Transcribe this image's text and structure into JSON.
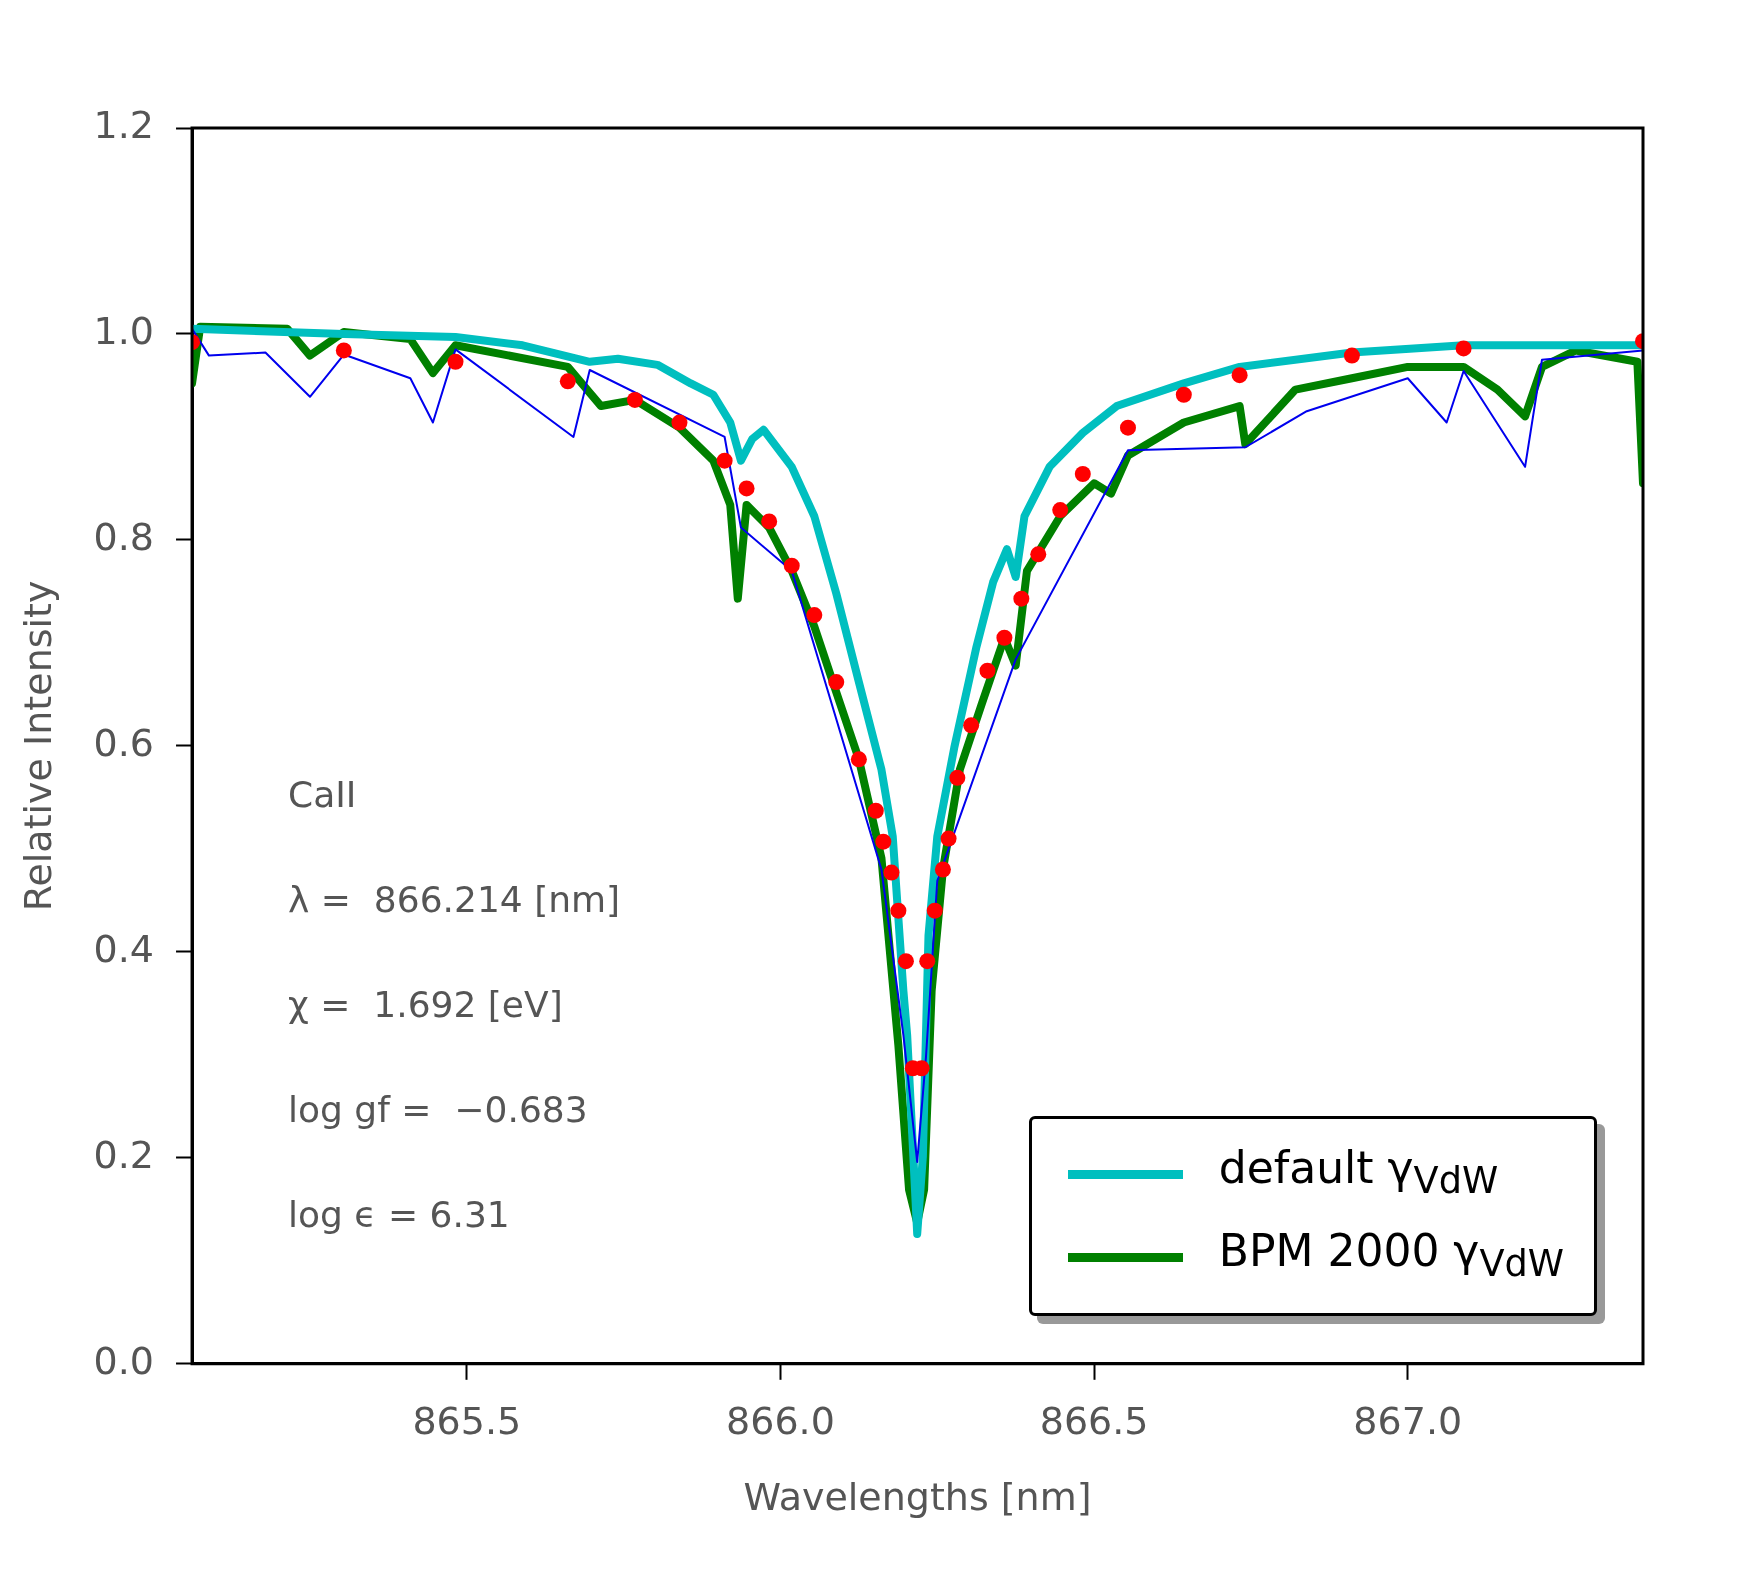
{
  "chart_data": {
    "type": "line",
    "xlabel": "Wavelengths [nm]",
    "ylabel": "Relative Intensity",
    "xlim": [
      865.062,
      867.375
    ],
    "xticks": [
      865.5,
      {
        "value": 866,
        "label": "866.0"
      },
      866.5,
      {
        "value": 867,
        "label": "867.0"
      }
    ],
    "ylim": [
      0,
      1.2
    ],
    "yticks": [
      {
        "value": 0,
        "label": "0.0"
      },
      0.2,
      0.4,
      0.6,
      0.8,
      {
        "value": 1,
        "label": "1.0"
      },
      1.2
    ],
    "grid": false,
    "legend": "bottom right",
    "annotations": [
      "CaII",
      "λ =  866.214 [nm]",
      "χ =  1.692 [eV]",
      "log gf =  −0.683",
      "log ϵ = 6.31"
    ],
    "series": [
      {
        "type": "line",
        "color": "#0000ee",
        "marker": "none",
        "x": [
          865.062,
          865.089,
          865.179,
          865.25,
          865.304,
          865.41,
          865.446,
          865.482,
          865.67,
          865.696,
          865.911,
          865.937,
          866.018,
          866.161,
          866.196,
          866.218,
          866.232,
          866.25,
          866.375,
          866.554,
          866.741,
          866.839,
          867.0,
          867.062,
          867.089,
          867.187,
          867.214,
          867.375
        ],
        "values": [
          1.005,
          0.979,
          0.982,
          0.939,
          0.98,
          0.957,
          0.914,
          0.985,
          0.9,
          0.965,
          0.9,
          0.812,
          0.77,
          0.48,
          0.319,
          0.196,
          0.298,
          0.469,
          0.684,
          0.887,
          0.89,
          0.925,
          0.957,
          0.914,
          0.964,
          0.871,
          0.975,
          0.984
        ]
      },
      {
        "type": "line",
        "name": "default γ$_{VdW}$",
        "color": "#00bfbf",
        "marker": "none",
        "x": [
          865.062,
          865.304,
          865.482,
          865.589,
          865.696,
          865.741,
          865.804,
          865.857,
          865.893,
          865.92,
          865.937,
          865.955,
          865.973,
          866.018,
          866.054,
          866.089,
          866.125,
          866.161,
          866.179,
          866.196,
          866.202,
          866.211,
          866.218,
          866.227,
          866.236,
          866.25,
          866.277,
          866.312,
          866.339,
          866.361,
          866.375,
          866.389,
          866.429,
          866.482,
          866.536,
          866.643,
          866.732,
          866.911,
          867.089,
          867.375
        ],
        "values": [
          1.005,
          1.0,
          0.997,
          0.989,
          0.973,
          0.976,
          0.97,
          0.952,
          0.941,
          0.914,
          0.877,
          0.898,
          0.907,
          0.871,
          0.823,
          0.748,
          0.662,
          0.577,
          0.512,
          0.362,
          0.319,
          0.212,
          0.126,
          0.201,
          0.416,
          0.512,
          0.598,
          0.695,
          0.759,
          0.791,
          0.764,
          0.823,
          0.871,
          0.904,
          0.93,
          0.952,
          0.968,
          0.982,
          0.989,
          0.989
        ]
      },
      {
        "type": "line",
        "name": "BPM 2000 γ$_{VdW}$",
        "color": "#008000",
        "marker": "none",
        "x": [
          865.062,
          865.075,
          865.214,
          865.25,
          865.304,
          865.41,
          865.446,
          865.482,
          865.661,
          865.714,
          865.768,
          865.839,
          865.893,
          865.92,
          865.932,
          865.946,
          865.982,
          866.018,
          866.054,
          866.089,
          866.125,
          866.161,
          866.188,
          866.205,
          866.218,
          866.229,
          866.241,
          866.259,
          866.286,
          866.321,
          866.357,
          866.375,
          866.393,
          866.446,
          866.5,
          866.527,
          866.554,
          866.643,
          866.732,
          866.741,
          866.821,
          866.911,
          867.0,
          867.089,
          867.143,
          867.187,
          867.214,
          867.268,
          867.366,
          867.375
        ],
        "values": [
          0.952,
          1.007,
          1.005,
          0.979,
          1.002,
          0.995,
          0.962,
          0.989,
          0.968,
          0.93,
          0.936,
          0.909,
          0.877,
          0.834,
          0.743,
          0.834,
          0.812,
          0.77,
          0.716,
          0.652,
          0.587,
          0.491,
          0.309,
          0.169,
          0.137,
          0.169,
          0.362,
          0.48,
          0.577,
          0.641,
          0.705,
          0.678,
          0.77,
          0.823,
          0.855,
          0.845,
          0.882,
          0.914,
          0.93,
          0.893,
          0.946,
          0.957,
          0.968,
          0.968,
          0.946,
          0.92,
          0.968,
          0.984,
          0.973,
          0.855
        ]
      },
      {
        "type": "scatter",
        "color": "#ff0000",
        "marker": "circle",
        "x": [
          865.062,
          865.304,
          865.482,
          865.661,
          865.768,
          865.839,
          865.911,
          865.946,
          865.982,
          866.018,
          866.054,
          866.089,
          866.125,
          866.152,
          866.164,
          866.177,
          866.188,
          866.2,
          866.211,
          866.225,
          866.234,
          866.246,
          866.259,
          866.268,
          866.282,
          866.304,
          866.33,
          866.357,
          866.384,
          866.411,
          866.446,
          866.482,
          866.554,
          866.643,
          866.732,
          866.911,
          867.089,
          867.375
        ],
        "values": [
          0.992,
          0.984,
          0.973,
          0.954,
          0.936,
          0.914,
          0.877,
          0.85,
          0.818,
          0.775,
          0.727,
          0.662,
          0.587,
          0.537,
          0.507,
          0.477,
          0.44,
          0.391,
          0.287,
          0.287,
          0.391,
          0.44,
          0.48,
          0.51,
          0.569,
          0.62,
          0.673,
          0.705,
          0.743,
          0.786,
          0.829,
          0.864,
          0.909,
          0.941,
          0.96,
          0.979,
          0.986,
          0.993
        ]
      }
    ]
  }
}
